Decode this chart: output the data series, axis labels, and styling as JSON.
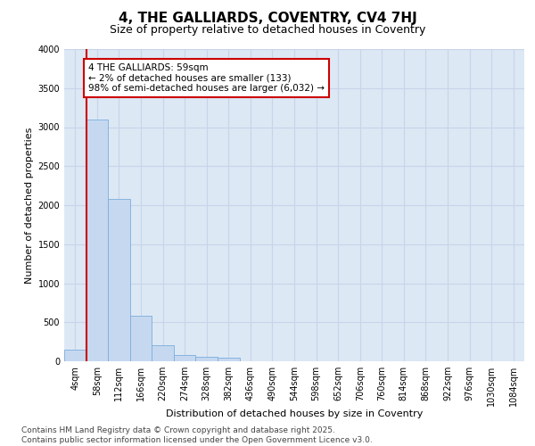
{
  "title": "4, THE GALLIARDS, COVENTRY, CV4 7HJ",
  "subtitle": "Size of property relative to detached houses in Coventry",
  "xlabel": "Distribution of detached houses by size in Coventry",
  "ylabel": "Number of detached properties",
  "categories": [
    "4sqm",
    "58sqm",
    "112sqm",
    "166sqm",
    "220sqm",
    "274sqm",
    "328sqm",
    "382sqm",
    "436sqm",
    "490sqm",
    "544sqm",
    "598sqm",
    "652sqm",
    "706sqm",
    "760sqm",
    "814sqm",
    "868sqm",
    "922sqm",
    "976sqm",
    "1030sqm",
    "1084sqm"
  ],
  "values": [
    150,
    3100,
    2080,
    580,
    210,
    80,
    60,
    50,
    0,
    0,
    0,
    0,
    0,
    0,
    0,
    0,
    0,
    0,
    0,
    0,
    0
  ],
  "bar_color": "#c5d8f0",
  "bar_edge_color": "#7aaddc",
  "grid_color": "#c8d4e8",
  "background_color": "#dde8f5",
  "vline_x": 0.5,
  "vline_color": "#cc0000",
  "annotation_text": "4 THE GALLIARDS: 59sqm\n← 2% of detached houses are smaller (133)\n98% of semi-detached houses are larger (6,032) →",
  "annotation_box_color": "#ffffff",
  "annotation_box_edge": "#cc0000",
  "ylim": [
    0,
    4000
  ],
  "yticks": [
    0,
    500,
    1000,
    1500,
    2000,
    2500,
    3000,
    3500,
    4000
  ],
  "footer_line1": "Contains HM Land Registry data © Crown copyright and database right 2025.",
  "footer_line2": "Contains public sector information licensed under the Open Government Licence v3.0.",
  "title_fontsize": 11,
  "subtitle_fontsize": 9,
  "axis_label_fontsize": 8,
  "tick_fontsize": 7,
  "footer_fontsize": 6.5
}
